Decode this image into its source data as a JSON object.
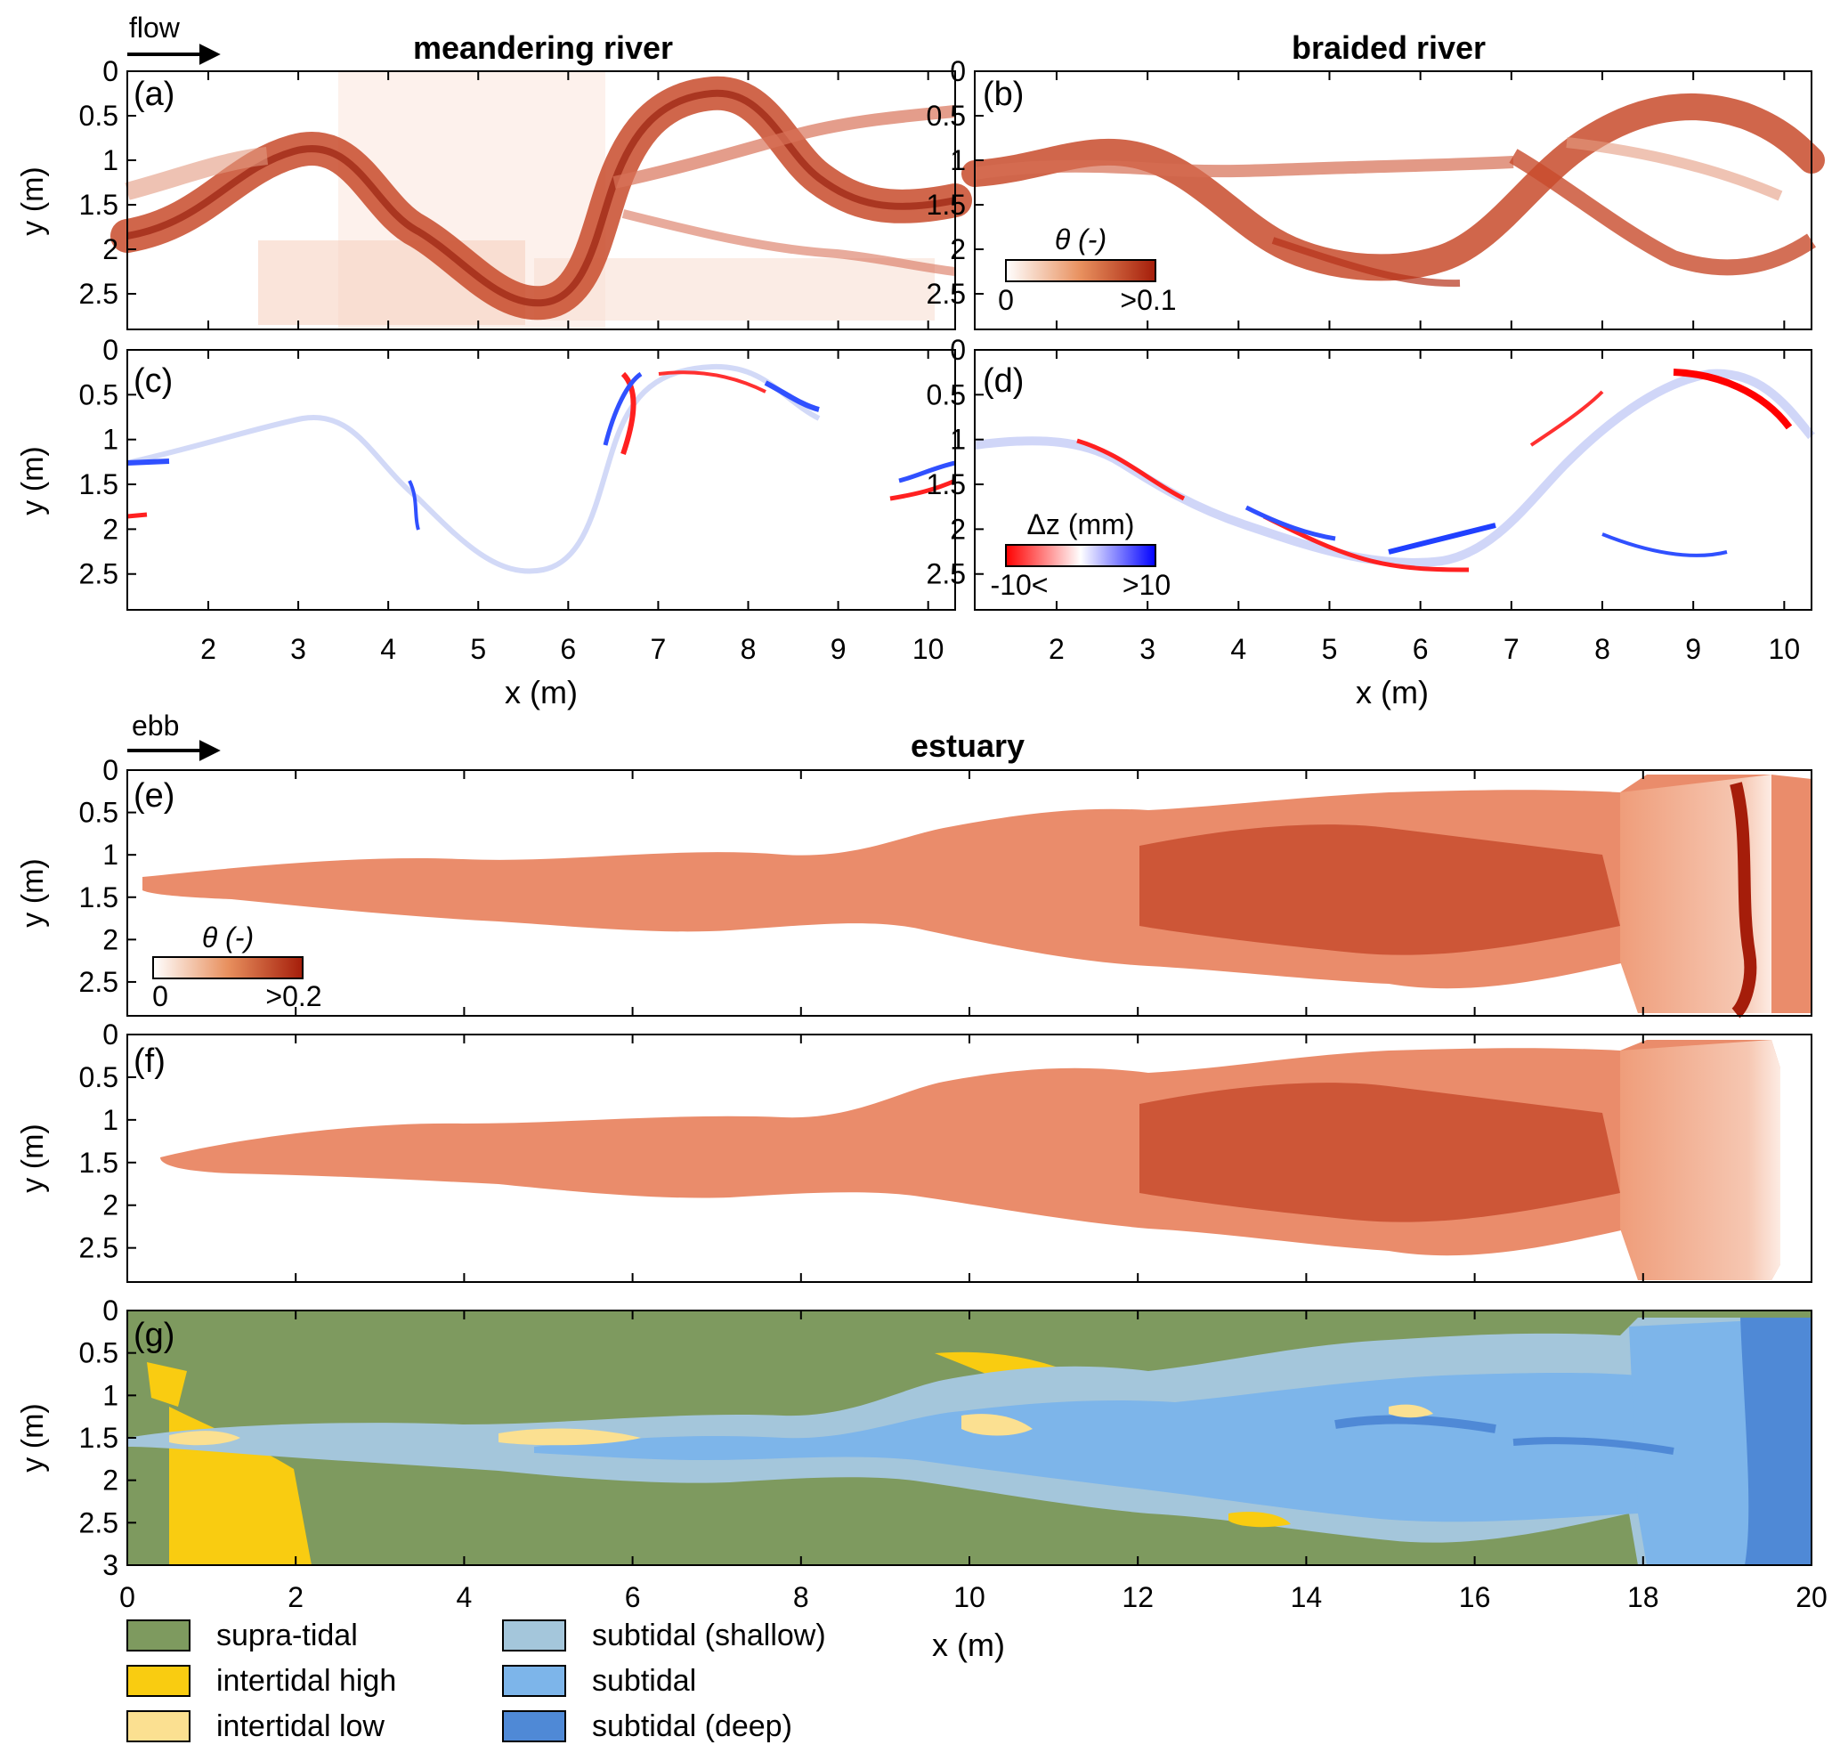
{
  "figure": {
    "arrows": {
      "river": "flow",
      "estuary": "ebb"
    },
    "titles": {
      "meandering": "meandering river",
      "braided": "braided river",
      "estuary": "estuary"
    },
    "panel_labels": {
      "a": "(a)",
      "b": "(b)",
      "c": "(c)",
      "d": "(d)",
      "e": "(e)",
      "f": "(f)",
      "g": "(g)"
    },
    "ylabel": "y (m)",
    "xlabel": "x (m)",
    "river_yticks": [
      "0",
      "0.5",
      "1",
      "1.5",
      "2",
      "2.5"
    ],
    "river_xticks": [
      "2",
      "3",
      "4",
      "5",
      "6",
      "7",
      "8",
      "9",
      "10"
    ],
    "estuary_yticks_ef": [
      "0",
      "0.5",
      "1",
      "1.5",
      "2",
      "2.5"
    ],
    "estuary_yticks_g": [
      "0",
      "0.5",
      "1",
      "1.5",
      "2",
      "2.5",
      "3"
    ],
    "estuary_xticks": [
      "0",
      "2",
      "4",
      "6",
      "8",
      "10",
      "12",
      "14",
      "16",
      "18",
      "20"
    ],
    "colorbars": {
      "theta_river": {
        "title": "θ (-)",
        "min": "0",
        "max": ">0.1",
        "colors": [
          "#ffffff",
          "#e8905e",
          "#a51d0a"
        ]
      },
      "dz": {
        "title": "Δz (mm)",
        "min": "-10<",
        "max": ">10",
        "colors": [
          "#ff0000",
          "#ffffff",
          "#0000ff"
        ]
      },
      "theta_estuary": {
        "title": "θ (-)",
        "min": "0",
        "max": ">0.2",
        "colors": [
          "#ffffff",
          "#e8905e",
          "#a51d0a"
        ]
      }
    },
    "legend": [
      {
        "label": "supra-tidal",
        "color": "#7e9a5f"
      },
      {
        "label": "intertidal high",
        "color": "#f9cc11"
      },
      {
        "label": "intertidal low",
        "color": "#fbe091"
      },
      {
        "label": "subtidal (shallow)",
        "color": "#a4c6db"
      },
      {
        "label": "subtidal",
        "color": "#7db5ea"
      },
      {
        "label": "subtidal (deep)",
        "color": "#4f89d6"
      }
    ]
  }
}
